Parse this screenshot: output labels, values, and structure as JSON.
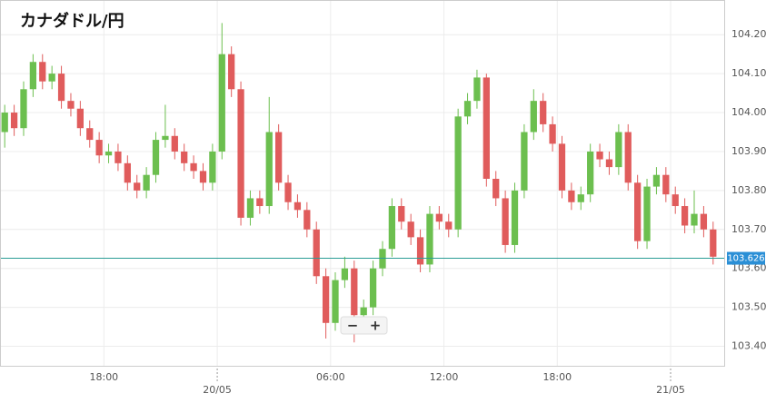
{
  "chart_data": {
    "type": "candlestick",
    "title": "カナダドル/円",
    "categories": [
      null,
      null,
      null,
      null,
      null,
      null,
      null,
      null,
      null,
      null,
      null,
      "18:00",
      null,
      null,
      null,
      null,
      null,
      null,
      null,
      null,
      null,
      null,
      null,
      "20/05",
      null,
      null,
      null,
      null,
      null,
      null,
      null,
      null,
      null,
      null,
      null,
      "06:00",
      null,
      null,
      null,
      null,
      null,
      null,
      null,
      null,
      null,
      null,
      null,
      "12:00",
      null,
      null,
      null,
      null,
      null,
      null,
      null,
      null,
      null,
      null,
      null,
      "18:00",
      null,
      null,
      null,
      null,
      null,
      null,
      null,
      null,
      null,
      null,
      null,
      "21/05",
      null,
      null,
      null,
      null
    ],
    "open": [
      103.95,
      104.0,
      103.96,
      104.06,
      104.13,
      104.08,
      104.1,
      104.03,
      104.01,
      103.96,
      103.93,
      103.89,
      103.9,
      103.87,
      103.82,
      103.8,
      103.84,
      103.93,
      103.94,
      103.9,
      103.87,
      103.85,
      103.82,
      103.9,
      104.15,
      104.06,
      103.73,
      103.78,
      103.76,
      103.95,
      103.82,
      103.77,
      103.75,
      103.7,
      103.58,
      103.46,
      103.57,
      103.6,
      103.48,
      103.5,
      103.6,
      103.65,
      103.76,
      103.72,
      103.68,
      103.61,
      103.74,
      103.72,
      103.7,
      103.99,
      104.03,
      104.09,
      103.83,
      103.78,
      103.66,
      103.8,
      103.95,
      104.03,
      103.97,
      103.92,
      103.8,
      103.77,
      103.79,
      103.9,
      103.88,
      103.86,
      103.95,
      103.82,
      103.67,
      103.81,
      103.84,
      103.79,
      103.76,
      103.71,
      103.74,
      103.7
    ],
    "high": [
      104.02,
      104.02,
      104.08,
      104.15,
      104.15,
      104.12,
      104.12,
      104.05,
      104.03,
      103.98,
      103.95,
      103.92,
      103.92,
      103.89,
      103.84,
      103.86,
      103.95,
      104.02,
      103.96,
      103.92,
      103.89,
      103.87,
      103.92,
      104.23,
      104.17,
      104.08,
      103.8,
      103.8,
      104.04,
      103.97,
      103.84,
      103.79,
      103.77,
      103.72,
      103.6,
      103.59,
      103.63,
      103.62,
      103.52,
      103.62,
      103.67,
      103.78,
      103.78,
      103.74,
      103.7,
      103.76,
      103.76,
      103.74,
      104.01,
      104.05,
      104.11,
      104.1,
      103.85,
      103.8,
      103.82,
      103.97,
      104.06,
      104.05,
      103.99,
      103.94,
      103.82,
      103.81,
      103.92,
      103.92,
      103.9,
      103.97,
      103.97,
      103.84,
      103.83,
      103.86,
      103.86,
      103.81,
      103.78,
      103.8,
      103.76,
      103.72
    ],
    "low": [
      103.91,
      103.94,
      103.94,
      104.04,
      104.06,
      104.06,
      104.01,
      103.99,
      103.94,
      103.91,
      103.87,
      103.87,
      103.85,
      103.8,
      103.78,
      103.78,
      103.82,
      103.91,
      103.88,
      103.85,
      103.83,
      103.8,
      103.8,
      103.88,
      104.04,
      103.71,
      103.71,
      103.74,
      103.74,
      103.8,
      103.75,
      103.73,
      103.68,
      103.56,
      103.42,
      103.44,
      103.55,
      103.41,
      103.46,
      103.48,
      103.58,
      103.63,
      103.7,
      103.66,
      103.59,
      103.59,
      103.7,
      103.68,
      103.68,
      103.97,
      104.01,
      103.81,
      103.76,
      103.64,
      103.64,
      103.78,
      103.93,
      103.95,
      103.9,
      103.78,
      103.75,
      103.75,
      103.77,
      103.86,
      103.84,
      103.84,
      103.8,
      103.65,
      103.65,
      103.79,
      103.77,
      103.74,
      103.69,
      103.69,
      103.68,
      103.61
    ],
    "close": [
      104.0,
      103.96,
      104.06,
      104.13,
      104.08,
      104.1,
      104.03,
      104.01,
      103.96,
      103.93,
      103.89,
      103.9,
      103.87,
      103.82,
      103.8,
      103.84,
      103.93,
      103.94,
      103.9,
      103.87,
      103.85,
      103.82,
      103.9,
      104.15,
      104.06,
      103.73,
      103.78,
      103.76,
      103.95,
      103.82,
      103.77,
      103.75,
      103.7,
      103.58,
      103.46,
      103.57,
      103.6,
      103.48,
      103.5,
      103.6,
      103.65,
      103.76,
      103.72,
      103.68,
      103.61,
      103.74,
      103.72,
      103.7,
      103.99,
      104.03,
      104.09,
      103.83,
      103.78,
      103.66,
      103.8,
      103.95,
      104.03,
      103.97,
      103.92,
      103.8,
      103.77,
      103.79,
      103.9,
      103.88,
      103.86,
      103.95,
      103.82,
      103.67,
      103.81,
      103.84,
      103.79,
      103.76,
      103.71,
      103.74,
      103.7,
      103.63
    ],
    "up_color": "#6cbf4f",
    "down_color": "#e05c5c",
    "last_price": 103.626,
    "last_price_color": "#2a9d96",
    "last_label_color": "#2a8fd6",
    "ylim": [
      103.35,
      104.289
    ],
    "yticks": [
      {
        "value": 103.4,
        "label": "103.400"
      },
      {
        "value": 103.5,
        "label": "103.500"
      },
      {
        "value": 103.6,
        "label": "103.600"
      },
      {
        "value": 103.7,
        "label": "103.700"
      },
      {
        "value": 103.8,
        "label": "103.800"
      },
      {
        "value": 103.9,
        "label": "103.900"
      },
      {
        "value": 104.0,
        "label": "104.000"
      },
      {
        "value": 104.1,
        "label": "104.100"
      },
      {
        "value": 104.2,
        "label": "104.200"
      }
    ],
    "grid": true
  },
  "controls": [
    "−",
    "+"
  ]
}
